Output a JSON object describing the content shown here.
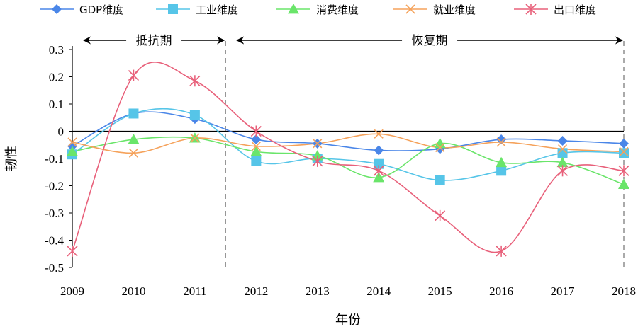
{
  "chart_data": {
    "type": "line",
    "x": [
      2009,
      2010,
      2011,
      2012,
      2013,
      2014,
      2015,
      2016,
      2017,
      2018
    ],
    "xlabel": "年份",
    "ylabel": "韧性",
    "ylim": [
      -0.5,
      0.3
    ],
    "yticks": [
      0.3,
      0.2,
      0.1,
      0,
      -0.1,
      -0.2,
      -0.3,
      -0.4,
      -0.5
    ],
    "yticklabels": [
      "0.3",
      "0.2",
      "0.1",
      "0",
      "-0.1",
      "-0.2",
      "-0.3",
      "-0.4",
      "-0.5"
    ],
    "grid": false,
    "legend_position": "top",
    "series": [
      {
        "name": "GDP维度",
        "color": "#4a86e8",
        "marker": "diamond",
        "values": [
          -0.055,
          0.065,
          0.045,
          -0.03,
          -0.045,
          -0.07,
          -0.065,
          -0.03,
          -0.035,
          -0.045
        ]
      },
      {
        "name": "工业维度",
        "color": "#56c5e8",
        "marker": "square",
        "values": [
          -0.085,
          0.065,
          0.06,
          -0.11,
          -0.1,
          -0.12,
          -0.18,
          -0.145,
          -0.08,
          -0.08
        ]
      },
      {
        "name": "消费维度",
        "color": "#6ae56a",
        "marker": "triangle",
        "values": [
          -0.075,
          -0.03,
          -0.025,
          -0.075,
          -0.09,
          -0.17,
          -0.045,
          -0.115,
          -0.115,
          -0.195
        ]
      },
      {
        "name": "就业维度",
        "color": "#f5a25b",
        "marker": "x",
        "values": [
          -0.04,
          -0.08,
          -0.025,
          -0.055,
          -0.045,
          -0.01,
          -0.06,
          -0.04,
          -0.065,
          -0.075
        ]
      },
      {
        "name": "出口维度",
        "color": "#e8607a",
        "marker": "star",
        "values": [
          -0.44,
          0.205,
          0.185,
          0,
          -0.11,
          -0.145,
          -0.31,
          -0.44,
          -0.145,
          -0.145
        ]
      }
    ],
    "phases": [
      {
        "label": "抵抗期",
        "from": 2009,
        "to": 2011.5
      },
      {
        "label": "恢复期",
        "from": 2011.5,
        "to": 2018
      }
    ],
    "divider_x": [
      2011.5,
      2018
    ]
  }
}
